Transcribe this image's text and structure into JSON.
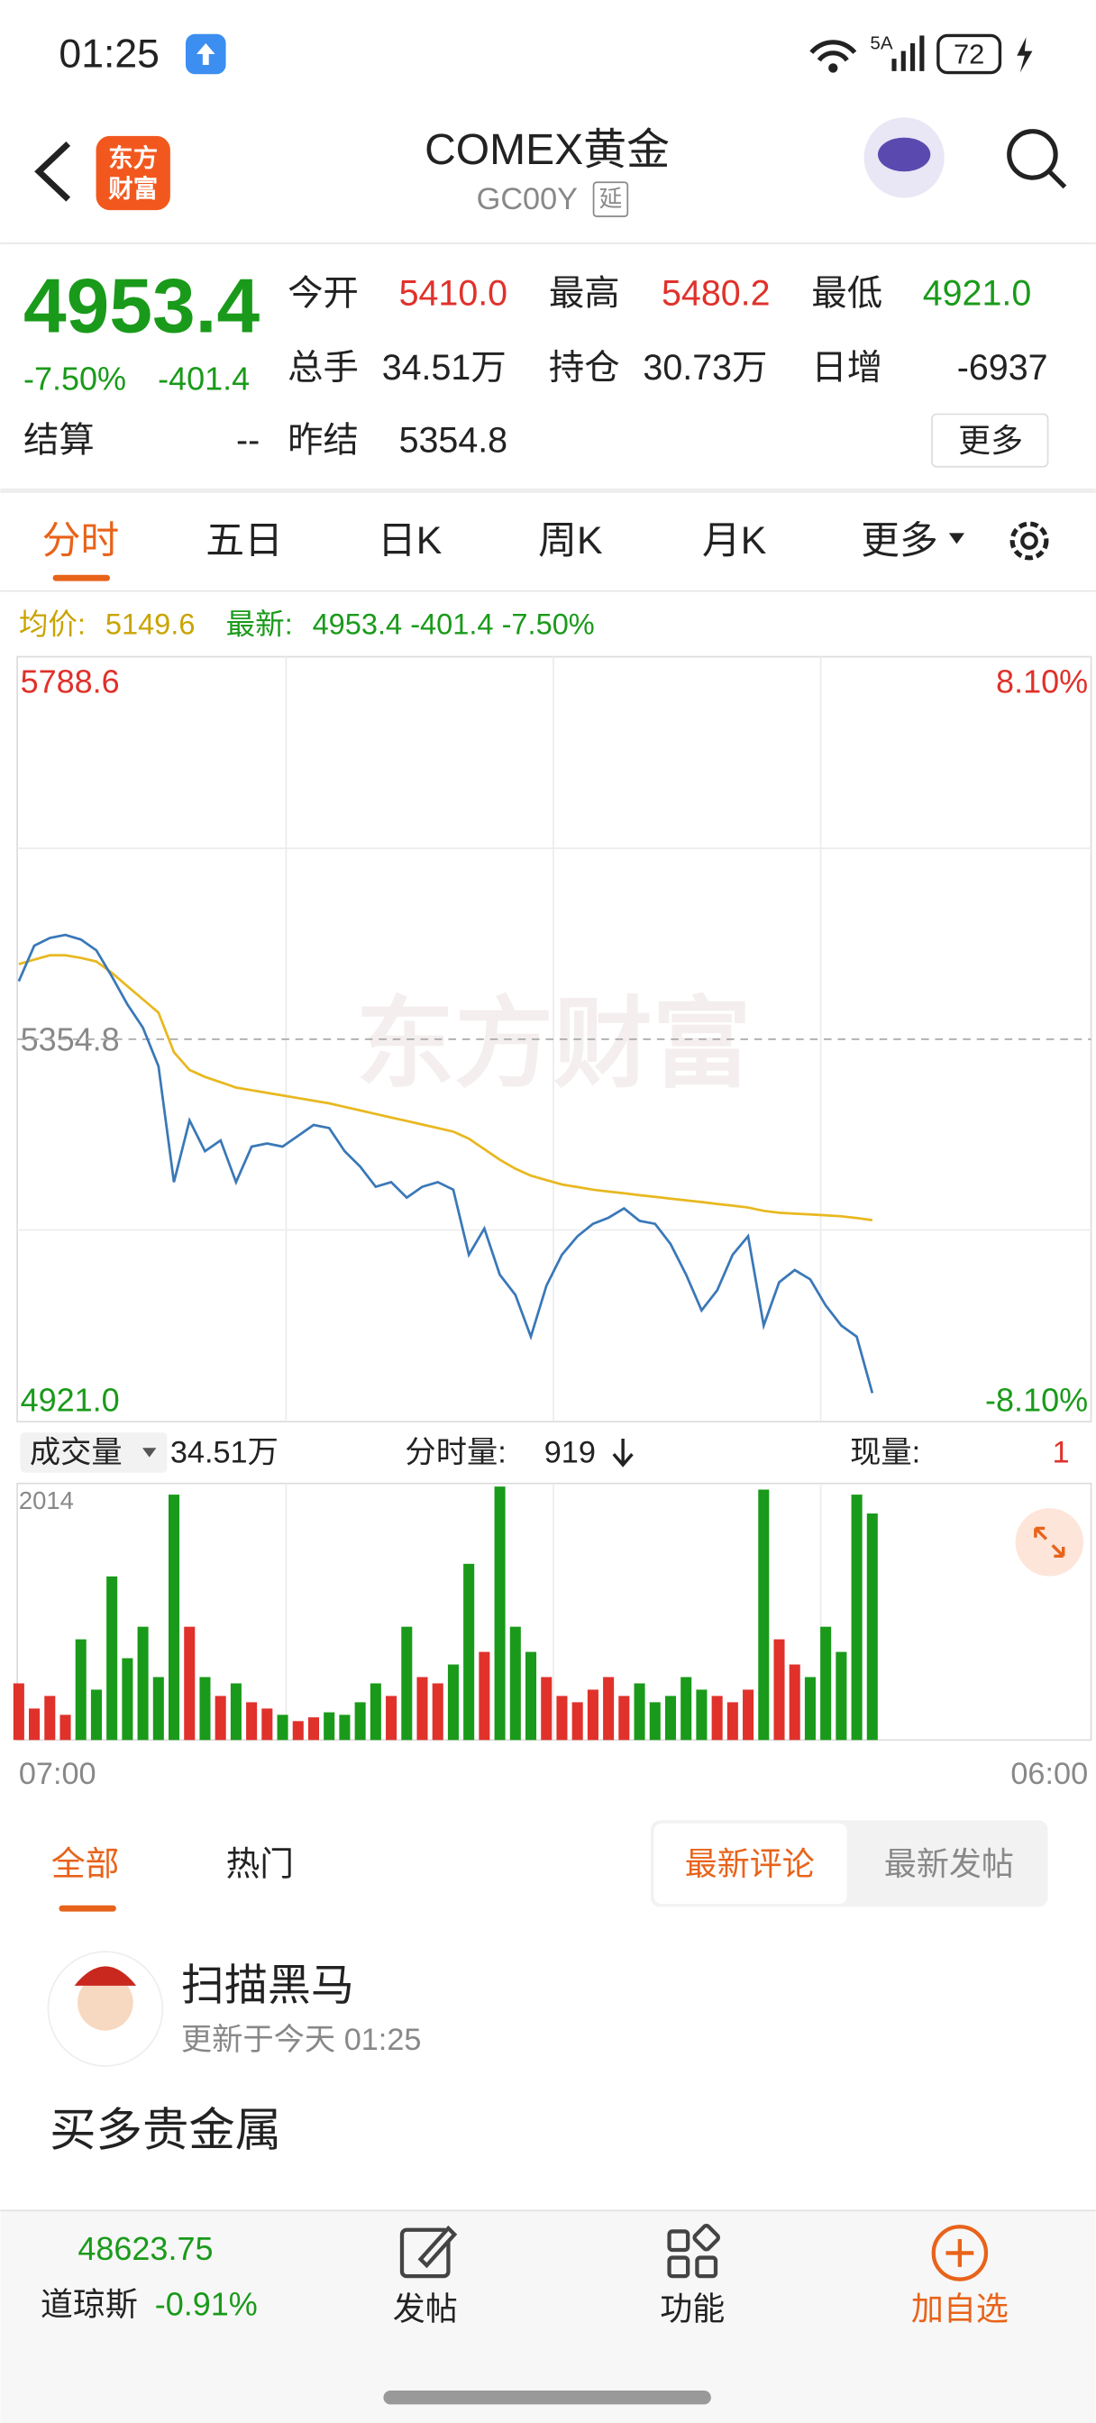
{
  "status_bar": {
    "time": "01:25",
    "network": "5A",
    "battery": "72"
  },
  "header": {
    "logo": [
      "东方",
      "财富"
    ],
    "title": "COMEX黄金",
    "code": "GC00Y",
    "delay_badge": "延"
  },
  "quote": {
    "price": "4953.4",
    "change_pct": "-7.50%",
    "change": "-401.4",
    "fields": [
      {
        "label": "今开",
        "value": "5410.0"
      },
      {
        "label": "最高",
        "value": "5480.2"
      },
      {
        "label": "最低",
        "value": "4921.0"
      },
      {
        "label": "总手",
        "value": "34.51万"
      },
      {
        "label": "持仓",
        "value": "30.73万"
      },
      {
        "label": "日增",
        "value": "-6937"
      },
      {
        "label": "结算",
        "value": "--"
      },
      {
        "label": "昨结",
        "value": "5354.8"
      }
    ],
    "more": "更多"
  },
  "tabs": [
    "分时",
    "五日",
    "日K",
    "周K",
    "月K",
    "更多"
  ],
  "intraday": {
    "avg_label": "均价:",
    "avg_value": "5149.6",
    "latest_label": "最新:",
    "latest": "4953.4 -401.4 -7.50%",
    "watermark": "东方财富",
    "price": {
      "type": "line",
      "ylim": [
        4921,
        5788.6
      ],
      "yticks": [
        {
          "value": 5788.6,
          "label": "5788.6"
        },
        5354.8,
        {
          "value": 4921,
          "label": "4921.0"
        }
      ],
      "y2lim": [
        -8.1,
        8.1
      ],
      "y2ticks": [
        {
          "value": 8.1,
          "label": "8.10%"
        },
        {
          "value": -8.1,
          "label": "-8.10%"
        }
      ],
      "series": [
        {
          "color": "#3a78b8",
          "values": [
            5420.5,
            5460.8,
            5469.6,
            5473.1,
            5467.9,
            5455.6,
            5425.8,
            5394.2,
            5367.9,
            5324.1,
            5192.7,
            5262.8,
            5227.7,
            5240.0,
            5192.7,
            5233.0,
            5236.5,
            5233.0,
            5245.3,
            5257.5,
            5254.0,
            5227.7,
            5210.2,
            5187.4,
            5192.7,
            5175.2,
            5187.4,
            5192.7,
            5184.0,
            5110.3,
            5140.1,
            5087.6,
            5064.7,
            5017.4,
            5075.3,
            5110.3,
            5131.4,
            5145.4,
            5152.4,
            5162.9,
            5148.9,
            5145.4,
            5122.6,
            5087.6,
            5047.2,
            5070.0,
            5110.3,
            5131.4,
            5030.0,
            5079.1,
            5093.0,
            5082.5,
            5052.7,
            5030.0,
            5017.4,
            4953.4,
            null,
            null,
            null,
            null,
            null,
            null,
            null,
            null,
            null,
            null,
            null,
            null,
            null,
            null
          ]
        },
        {
          "color": "#e8b820",
          "values": [
            5440,
            5445,
            5450,
            5450,
            5447,
            5443,
            5430,
            5415,
            5400,
            5385,
            5340,
            5320,
            5312,
            5306,
            5300,
            5297,
            5294,
            5291,
            5288,
            5285,
            5282,
            5278,
            5274,
            5270,
            5266,
            5262,
            5258,
            5254,
            5250,
            5242,
            5230,
            5218,
            5208,
            5200,
            5195,
            5190,
            5187,
            5184,
            5182,
            5180,
            5178,
            5176,
            5174,
            5172,
            5170,
            5168,
            5166,
            5164,
            5160,
            5158,
            5157,
            5156,
            5155,
            5154,
            5152,
            5149.6,
            null,
            null,
            null,
            null,
            null,
            null,
            null,
            null,
            null,
            null,
            null,
            null,
            null,
            null
          ]
        }
      ]
    },
    "volume_bar": {
      "label": "成交量",
      "total": "34.51万",
      "tick_label": "分时量:",
      "tick_value": "919",
      "now_label": "现量:",
      "now_value": "1"
    },
    "volume": {
      "type": "bar",
      "ylim": [
        0,
        2014
      ],
      "yticks": [
        2014
      ],
      "up_color": "#e0312b",
      "down_color": "#1a9a1a",
      "values": [
        450,
        250,
        350,
        200,
        800,
        400,
        1300,
        650,
        900,
        500,
        1950,
        900,
        500,
        350,
        450,
        300,
        250,
        200,
        150,
        180,
        220,
        200,
        300,
        450,
        350,
        900,
        500,
        450,
        600,
        1400,
        700,
        2014,
        900,
        700,
        500,
        350,
        300,
        400,
        500,
        350,
        450,
        300,
        350,
        500,
        400,
        350,
        300,
        400,
        1990,
        800,
        600,
        500,
        900,
        700,
        1950,
        1800,
        null,
        null,
        null,
        null,
        null,
        null,
        null,
        null,
        null,
        null,
        null,
        null,
        null,
        null
      ]
    },
    "x_start": "07:00",
    "x_end": "06:00"
  },
  "comments": {
    "tabs": [
      "全部",
      "热门"
    ],
    "sort": [
      "最新评论",
      "最新发帖"
    ],
    "post": {
      "author": "扫描黑马",
      "time": "更新于今天 01:25",
      "title": "买多贵金属"
    }
  },
  "bottom_bar": {
    "index_value": "48623.75",
    "index_name": "道琼斯",
    "index_change": "-0.91%",
    "actions": [
      "发帖",
      "功能",
      "加自选"
    ]
  }
}
